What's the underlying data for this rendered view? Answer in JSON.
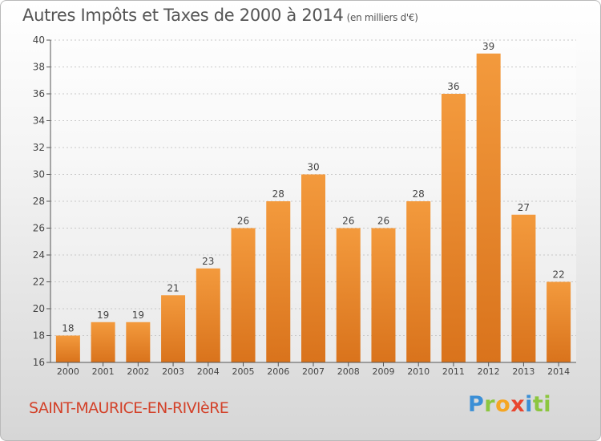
{
  "header": {
    "title": "Autres Impôts et Taxes de 2000 à 2014",
    "subtitle": "(en milliers d'€)"
  },
  "footer": {
    "commune": "SAINT-MAURICE-EN-RIVIèRE",
    "logo_letters": [
      "P",
      "r",
      "o",
      "x",
      "i",
      "t",
      "i"
    ]
  },
  "colors": {
    "bar": "#f39a3d",
    "bar_dark": "#d9731c",
    "axis": "#555555",
    "grid": "#c8c8c8"
  },
  "chart_data": {
    "type": "bar",
    "categories": [
      "2000",
      "2001",
      "2002",
      "2003",
      "2004",
      "2005",
      "2006",
      "2007",
      "2008",
      "2009",
      "2010",
      "2011",
      "2012",
      "2013",
      "2014"
    ],
    "values": [
      18,
      19,
      19,
      21,
      23,
      26,
      28,
      30,
      26,
      26,
      28,
      36,
      39,
      27,
      22
    ],
    "ylim": [
      16,
      40
    ],
    "yticks": [
      16,
      18,
      20,
      22,
      24,
      26,
      28,
      30,
      32,
      34,
      36,
      38,
      40
    ],
    "grid": "horizontal dashed",
    "data_labels": true
  }
}
